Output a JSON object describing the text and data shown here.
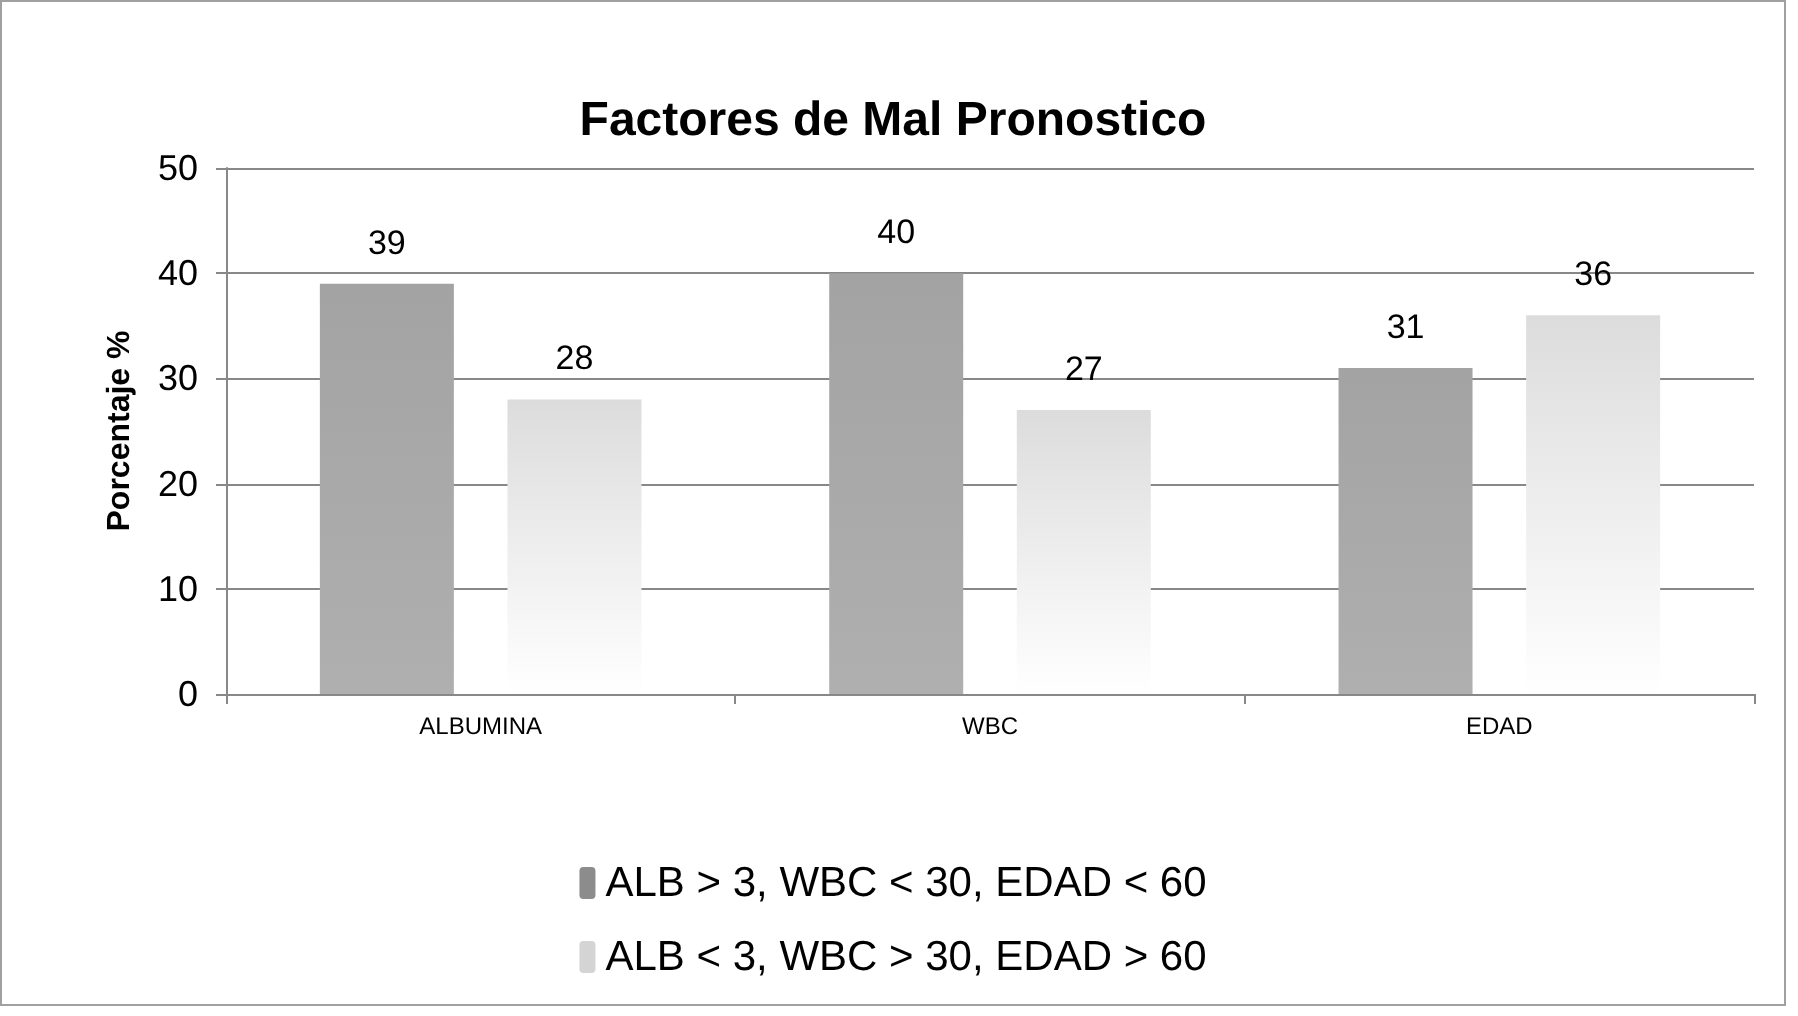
{
  "chart_data": {
    "type": "bar",
    "title": "Factores de Mal Pronostico",
    "ylabel": "Porcentaje %",
    "categories": [
      "ALBUMINA",
      "WBC",
      "EDAD"
    ],
    "series": [
      {
        "name": "ALB > 3, WBC < 30, EDAD < 60",
        "color": "#8c8c8c",
        "values": [
          39,
          40,
          31
        ]
      },
      {
        "name": "ALB < 3, WBC > 30, EDAD > 60",
        "color": "#d4d4d4",
        "values": [
          28,
          27,
          36
        ]
      }
    ],
    "ylim": [
      0,
      50
    ],
    "yticks": [
      0,
      10,
      20,
      30,
      40,
      50
    ],
    "grid": "y",
    "legend": "bottom",
    "data_labels": true
  }
}
